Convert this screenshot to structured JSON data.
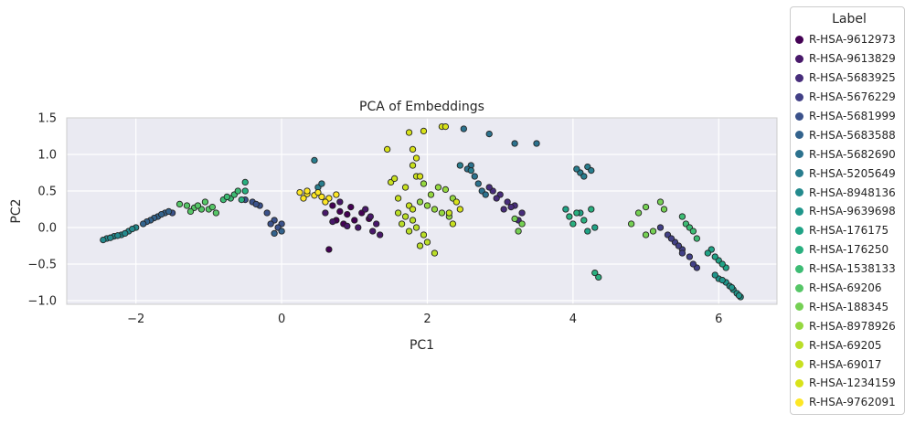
{
  "chart_data": {
    "type": "scatter",
    "title": "PCA of Embeddings",
    "xlabel": "PC1",
    "ylabel": "PC2",
    "xlim": [
      -2.95,
      6.8
    ],
    "ylim": [
      -1.05,
      1.5
    ],
    "xticks": [
      -2,
      0,
      2,
      4,
      6
    ],
    "xtick_labels": [
      "−2",
      "0",
      "2",
      "4",
      "6"
    ],
    "yticks": [
      -1.0,
      -0.5,
      0.0,
      0.5,
      1.0,
      1.5
    ],
    "ytick_labels": [
      "−1.0",
      "−0.5",
      "0.0",
      "0.5",
      "1.0",
      "1.5"
    ],
    "grid": true,
    "legend_title": "Label",
    "legend_position": "outside-right",
    "series": [
      {
        "name": "R-HSA-9612973",
        "color": "#440154",
        "points": [
          [
            0.7,
            0.3
          ],
          [
            0.8,
            0.22
          ],
          [
            0.9,
            0.18
          ],
          [
            1.0,
            0.1
          ],
          [
            0.85,
            0.05
          ],
          [
            1.1,
            0.2
          ],
          [
            0.75,
            0.1
          ],
          [
            0.95,
            0.28
          ],
          [
            1.2,
            0.12
          ],
          [
            0.65,
            -0.3
          ]
        ]
      },
      {
        "name": "R-HSA-9613829",
        "color": "#48186a",
        "points": [
          [
            1.3,
            0.05
          ],
          [
            1.25,
            -0.05
          ],
          [
            0.6,
            0.2
          ],
          [
            0.7,
            0.08
          ],
          [
            1.05,
            0.0
          ],
          [
            0.9,
            0.02
          ],
          [
            1.15,
            0.25
          ],
          [
            1.35,
            -0.1
          ],
          [
            1.22,
            0.15
          ],
          [
            0.8,
            0.35
          ]
        ]
      },
      {
        "name": "R-HSA-5683925",
        "color": "#472d7b",
        "points": [
          [
            2.9,
            0.5
          ],
          [
            3.0,
            0.45
          ],
          [
            3.1,
            0.35
          ],
          [
            2.95,
            0.4
          ],
          [
            3.2,
            0.3
          ],
          [
            3.05,
            0.25
          ],
          [
            2.85,
            0.55
          ],
          [
            3.3,
            0.2
          ],
          [
            3.15,
            0.28
          ],
          [
            3.25,
            0.1
          ]
        ]
      },
      {
        "name": "R-HSA-5676229",
        "color": "#424086",
        "points": [
          [
            5.5,
            -0.3
          ],
          [
            5.6,
            -0.4
          ],
          [
            5.7,
            -0.55
          ],
          [
            5.4,
            -0.2
          ],
          [
            5.3,
            -0.1
          ],
          [
            5.2,
            0.0
          ],
          [
            5.5,
            -0.35
          ],
          [
            5.65,
            -0.5
          ],
          [
            5.45,
            -0.25
          ],
          [
            5.35,
            -0.15
          ]
        ]
      },
      {
        "name": "R-HSA-5681999",
        "color": "#3b528b",
        "points": [
          [
            -0.5,
            0.38
          ],
          [
            -0.4,
            0.35
          ],
          [
            -0.3,
            0.3
          ],
          [
            -0.2,
            0.2
          ],
          [
            -0.1,
            0.1
          ],
          [
            0.0,
            0.05
          ],
          [
            -0.05,
            0.0
          ],
          [
            -0.15,
            0.05
          ],
          [
            -0.35,
            0.32
          ],
          [
            -1.5,
            0.2
          ]
        ]
      },
      {
        "name": "R-HSA-5683588",
        "color": "#33638d",
        "points": [
          [
            -1.6,
            0.2
          ],
          [
            -1.7,
            0.15
          ],
          [
            -1.75,
            0.13
          ],
          [
            -1.8,
            0.1
          ],
          [
            -1.85,
            0.08
          ],
          [
            -1.9,
            0.05
          ],
          [
            -1.65,
            0.18
          ],
          [
            -1.55,
            0.22
          ],
          [
            0.0,
            -0.05
          ],
          [
            -0.1,
            -0.08
          ]
        ]
      },
      {
        "name": "R-HSA-5682690",
        "color": "#2c728e",
        "points": [
          [
            2.5,
            1.35
          ],
          [
            2.85,
            1.28
          ],
          [
            3.2,
            1.15
          ],
          [
            3.5,
            1.15
          ],
          [
            2.6,
            0.85
          ],
          [
            2.55,
            0.8
          ],
          [
            2.7,
            0.6
          ],
          [
            2.75,
            0.5
          ],
          [
            2.8,
            0.45
          ],
          [
            2.65,
            0.7
          ]
        ]
      },
      {
        "name": "R-HSA-5205649",
        "color": "#287d8e",
        "points": [
          [
            4.2,
            0.83
          ],
          [
            4.1,
            0.75
          ],
          [
            4.25,
            0.78
          ],
          [
            0.45,
            0.92
          ],
          [
            0.5,
            0.55
          ],
          [
            4.15,
            0.7
          ],
          [
            2.6,
            0.78
          ],
          [
            2.45,
            0.85
          ],
          [
            4.05,
            0.8
          ],
          [
            0.55,
            0.6
          ]
        ]
      },
      {
        "name": "R-HSA-8948136",
        "color": "#238a8d",
        "points": [
          [
            -2.4,
            -0.15
          ],
          [
            -2.3,
            -0.12
          ],
          [
            -2.2,
            -0.1
          ],
          [
            -2.1,
            -0.05
          ],
          [
            -2.0,
            0.0
          ],
          [
            -2.45,
            -0.17
          ],
          [
            -2.35,
            -0.14
          ],
          [
            -2.25,
            -0.11
          ],
          [
            -2.15,
            -0.08
          ],
          [
            -2.05,
            -0.02
          ]
        ]
      },
      {
        "name": "R-HSA-9639698",
        "color": "#1f968b",
        "points": [
          [
            6.0,
            -0.7
          ],
          [
            6.1,
            -0.75
          ],
          [
            6.2,
            -0.85
          ],
          [
            6.3,
            -0.95
          ],
          [
            6.25,
            -0.9
          ],
          [
            6.15,
            -0.8
          ],
          [
            6.05,
            -0.72
          ],
          [
            5.95,
            -0.65
          ],
          [
            6.28,
            -0.93
          ],
          [
            6.18,
            -0.82
          ]
        ]
      },
      {
        "name": "R-HSA-176175",
        "color": "#20a386",
        "points": [
          [
            5.9,
            -0.3
          ],
          [
            6.0,
            -0.45
          ],
          [
            6.1,
            -0.55
          ],
          [
            5.95,
            -0.4
          ],
          [
            6.05,
            -0.5
          ],
          [
            5.85,
            -0.35
          ],
          [
            4.1,
            0.2
          ],
          [
            3.9,
            0.25
          ],
          [
            4.2,
            -0.05
          ],
          [
            4.3,
            0.0
          ]
        ]
      },
      {
        "name": "R-HSA-176250",
        "color": "#29af7f",
        "points": [
          [
            4.05,
            0.2
          ],
          [
            4.15,
            0.1
          ],
          [
            4.0,
            0.05
          ],
          [
            3.95,
            0.15
          ],
          [
            4.25,
            0.25
          ],
          [
            4.3,
            -0.62
          ],
          [
            4.35,
            -0.68
          ],
          [
            -0.5,
            0.5
          ],
          [
            -0.5,
            0.62
          ],
          [
            -0.55,
            0.38
          ]
        ]
      },
      {
        "name": "R-HSA-1538133",
        "color": "#3dbc74",
        "points": [
          [
            -0.7,
            0.4
          ],
          [
            -0.65,
            0.45
          ],
          [
            -0.8,
            0.38
          ],
          [
            -0.75,
            0.42
          ],
          [
            -0.6,
            0.5
          ],
          [
            5.5,
            0.15
          ],
          [
            5.55,
            0.05
          ],
          [
            5.6,
            0.0
          ],
          [
            5.65,
            -0.05
          ],
          [
            5.7,
            -0.15
          ]
        ]
      },
      {
        "name": "R-HSA-69206",
        "color": "#56c667",
        "points": [
          [
            -1.0,
            0.25
          ],
          [
            -1.1,
            0.25
          ],
          [
            -1.2,
            0.27
          ],
          [
            -1.3,
            0.3
          ],
          [
            -1.4,
            0.32
          ],
          [
            -0.9,
            0.2
          ],
          [
            -1.05,
            0.35
          ],
          [
            -1.15,
            0.3
          ],
          [
            -1.25,
            0.22
          ],
          [
            -0.95,
            0.28
          ]
        ]
      },
      {
        "name": "R-HSA-188345",
        "color": "#75d054",
        "points": [
          [
            3.3,
            0.05
          ],
          [
            3.2,
            0.12
          ],
          [
            3.25,
            -0.05
          ],
          [
            5.0,
            0.28
          ],
          [
            4.9,
            0.2
          ],
          [
            5.2,
            0.35
          ],
          [
            5.1,
            -0.05
          ],
          [
            4.8,
            0.05
          ],
          [
            5.0,
            -0.1
          ],
          [
            5.25,
            0.25
          ]
        ]
      },
      {
        "name": "R-HSA-8978926",
        "color": "#95d840",
        "points": [
          [
            1.9,
            0.35
          ],
          [
            2.0,
            0.3
          ],
          [
            2.1,
            0.25
          ],
          [
            2.2,
            0.2
          ],
          [
            2.3,
            0.15
          ],
          [
            2.05,
            0.45
          ],
          [
            2.15,
            0.55
          ],
          [
            2.25,
            0.52
          ],
          [
            1.95,
            0.6
          ],
          [
            2.35,
            0.4
          ]
        ]
      },
      {
        "name": "R-HSA-69205",
        "color": "#bade28",
        "points": [
          [
            1.6,
            0.2
          ],
          [
            1.7,
            0.15
          ],
          [
            1.65,
            0.05
          ],
          [
            1.75,
            -0.05
          ],
          [
            1.8,
            0.1
          ],
          [
            1.85,
            0.0
          ],
          [
            1.95,
            -0.1
          ],
          [
            2.0,
            -0.2
          ],
          [
            1.9,
            -0.25
          ],
          [
            2.1,
            -0.35
          ]
        ]
      },
      {
        "name": "R-HSA-69017",
        "color": "#c8e020",
        "points": [
          [
            1.5,
            0.62
          ],
          [
            1.55,
            0.67
          ],
          [
            1.8,
            0.85
          ],
          [
            1.85,
            0.7
          ],
          [
            1.7,
            0.55
          ],
          [
            1.6,
            0.4
          ],
          [
            1.75,
            0.3
          ],
          [
            1.8,
            0.25
          ],
          [
            2.35,
            0.05
          ],
          [
            2.3,
            0.2
          ]
        ]
      },
      {
        "name": "R-HSA-1234159",
        "color": "#d8e219",
        "points": [
          [
            1.45,
            1.07
          ],
          [
            1.75,
            1.3
          ],
          [
            1.95,
            1.32
          ],
          [
            2.2,
            1.38
          ],
          [
            2.25,
            1.38
          ],
          [
            1.85,
            0.95
          ],
          [
            1.8,
            1.07
          ],
          [
            1.9,
            0.7
          ],
          [
            2.4,
            0.35
          ],
          [
            2.45,
            0.25
          ]
        ]
      },
      {
        "name": "R-HSA-9762091",
        "color": "#fde725",
        "points": [
          [
            0.25,
            0.48
          ],
          [
            0.35,
            0.46
          ],
          [
            0.45,
            0.44
          ],
          [
            0.55,
            0.42
          ],
          [
            0.65,
            0.4
          ],
          [
            0.35,
            0.5
          ],
          [
            0.5,
            0.48
          ],
          [
            0.75,
            0.45
          ],
          [
            0.6,
            0.35
          ],
          [
            0.3,
            0.4
          ]
        ]
      }
    ]
  }
}
